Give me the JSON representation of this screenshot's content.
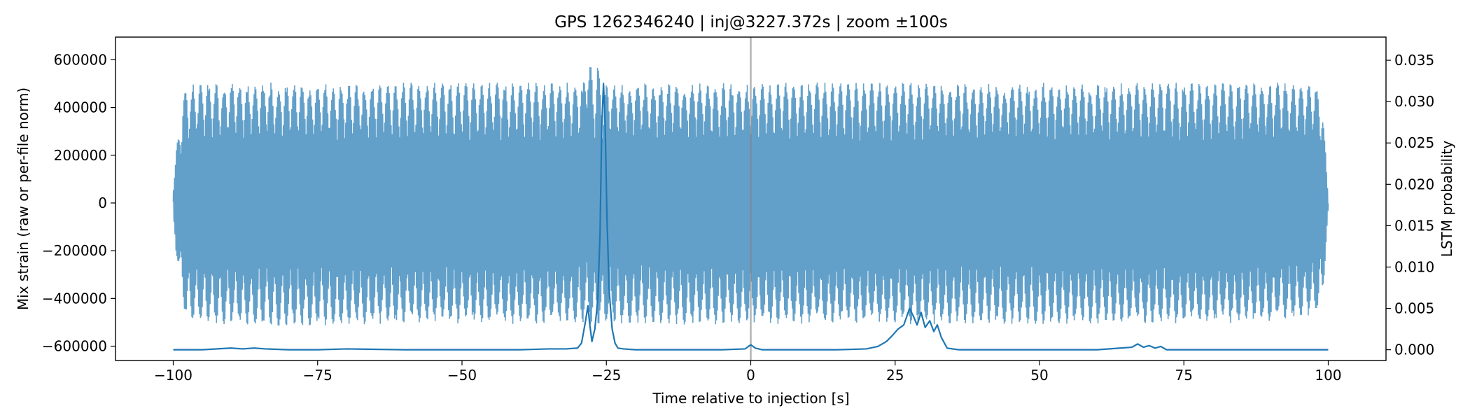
{
  "chart_data": {
    "type": "line",
    "title": "GPS 1262346240 | inj@3227.372s | zoom ±100s",
    "xlabel": "Time relative to injection [s]",
    "ylabel_left": "Mix strain (raw or per-file norm)",
    "ylabel_right": "LSTM probability",
    "xlim": [
      -110,
      110
    ],
    "ylim_left": [
      -660000,
      695000
    ],
    "ylim_right": [
      -0.0013,
      0.0378
    ],
    "xticks": [
      -100,
      -75,
      -50,
      -25,
      0,
      25,
      50,
      75,
      100
    ],
    "xtick_labels": [
      "−100",
      "−75",
      "−50",
      "−25",
      "0",
      "25",
      "50",
      "75",
      "100"
    ],
    "yticks_left": [
      -600000,
      -400000,
      -200000,
      0,
      200000,
      400000,
      600000
    ],
    "ytick_labels_left": [
      "−600000",
      "−400000",
      "−200000",
      "0",
      "200000",
      "400000",
      "600000"
    ],
    "yticks_right": [
      0.0,
      0.005,
      0.01,
      0.015,
      0.02,
      0.025,
      0.03,
      0.035
    ],
    "ytick_labels_right": [
      "0.000",
      "0.005",
      "0.010",
      "0.015",
      "0.020",
      "0.025",
      "0.030",
      "0.035"
    ],
    "grid": false,
    "injection_marker_x": 0,
    "series": [
      {
        "axis": "left",
        "color": "#1f77b4",
        "opacity": 0.7,
        "x_range": [
          -100,
          100
        ],
        "envelope": {
          "x": [
            -100,
            -99.5,
            -99,
            -98,
            -96,
            -90,
            -80,
            -70,
            -60,
            -50,
            -40,
            -30,
            -29,
            -28.3,
            -27,
            -26.5,
            -26,
            -25,
            -20,
            -10,
            0,
            10,
            20,
            30,
            40,
            50,
            60,
            70,
            80,
            90,
            98,
            99,
            99.6,
            100
          ],
          "upper": [
            80000,
            220000,
            300000,
            490000,
            505000,
            505000,
            505000,
            500000,
            505000,
            505000,
            505000,
            505000,
            505000,
            635000,
            500000,
            635000,
            500000,
            500000,
            505000,
            505000,
            500000,
            505000,
            505000,
            505000,
            500000,
            505000,
            500000,
            505000,
            505000,
            505000,
            500000,
            420000,
            200000,
            40000
          ],
          "lower": [
            -80000,
            -220000,
            -300000,
            -480000,
            -500000,
            -510000,
            -520000,
            -510000,
            -505000,
            -505000,
            -510000,
            -505000,
            -510000,
            -515000,
            -505000,
            -510000,
            -505000,
            -510000,
            -505000,
            -510000,
            -505000,
            -510000,
            -505000,
            -510000,
            -505000,
            -510000,
            -505000,
            -510000,
            -505000,
            -500000,
            -470000,
            -400000,
            -200000,
            -40000
          ]
        }
      },
      {
        "axis": "right",
        "color": "#1f77b4",
        "x": [
          -100,
          -95,
          -90,
          -88,
          -86,
          -84,
          -80,
          -75,
          -70,
          -60,
          -50,
          -40,
          -35,
          -32,
          -30,
          -29.3,
          -28.6,
          -28.2,
          -27.9,
          -27.5,
          -27.0,
          -26.5,
          -26.1,
          -25.8,
          -25.5,
          -25.2,
          -24.9,
          -24.5,
          -24.0,
          -23.5,
          -23.0,
          -22.0,
          -20,
          -15,
          -10,
          -5,
          -1,
          0,
          0.8,
          2,
          5,
          10,
          15,
          20,
          22,
          23.5,
          24.5,
          25.5,
          26.5,
          27.5,
          28.2,
          28.8,
          29.5,
          30.2,
          31,
          31.7,
          32.3,
          33,
          34,
          36,
          40,
          50,
          55,
          60,
          64,
          66,
          67,
          68,
          69,
          70,
          71,
          72,
          75,
          80,
          90,
          100
        ],
        "y": [
          0.0,
          0.0,
          0.0002,
          0.0001,
          0.0002,
          0.0001,
          0.0,
          0.0,
          0.0001,
          0.0,
          0.0,
          0.0,
          0.0001,
          0.0001,
          0.0002,
          0.0008,
          0.0035,
          0.0053,
          0.0032,
          0.001,
          0.0025,
          0.006,
          0.014,
          0.027,
          0.0322,
          0.027,
          0.016,
          0.007,
          0.0025,
          0.0008,
          0.0002,
          0.0001,
          0.0,
          0.0,
          0.0,
          0.0,
          0.0001,
          0.0006,
          0.0002,
          0.0,
          0.0,
          0.0,
          0.0,
          0.0001,
          0.0004,
          0.001,
          0.0017,
          0.0025,
          0.003,
          0.005,
          0.004,
          0.003,
          0.0045,
          0.0027,
          0.0035,
          0.0022,
          0.003,
          0.0015,
          0.0002,
          0.0,
          0.0,
          0.0,
          0.0,
          0.0,
          0.0002,
          0.0003,
          0.0007,
          0.0003,
          0.0005,
          0.0002,
          0.0004,
          0.0,
          0.0,
          0.0,
          0.0,
          0.0
        ]
      }
    ]
  }
}
